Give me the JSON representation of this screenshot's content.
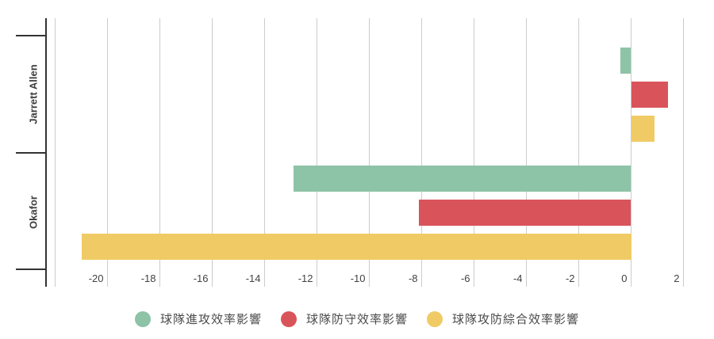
{
  "chart_data": {
    "type": "bar",
    "orientation": "horizontal",
    "title": "",
    "xlabel": "",
    "ylabel": "",
    "grid": true,
    "legend_position": "bottom",
    "categories": [
      "Jarrett Allen",
      "Okafor"
    ],
    "series": [
      {
        "name": "球隊進攻效率影響",
        "color": "#8DC3A7",
        "values": [
          -0.4,
          -12.9
        ]
      },
      {
        "name": "球隊防守效率影響",
        "color": "#D9545A",
        "values": [
          1.4,
          -8.1
        ]
      },
      {
        "name": "球隊攻防綜合效率影響",
        "color": "#F0CB65",
        "values": [
          0.9,
          -21
        ]
      }
    ],
    "x_axis": {
      "min": -22,
      "max": 2,
      "gridline_step": 2,
      "label_min": -20,
      "label_step": 2,
      "tick_labels": [
        "-20",
        "-18",
        "-16",
        "-14",
        "-12",
        "-10",
        "-8",
        "-6",
        "-4",
        "-2",
        "0",
        "2"
      ]
    }
  },
  "colors": {
    "axis_line": "#333333",
    "gridline": "#cccccc",
    "axis_text": "#424242",
    "legend_text": "#4a4a4a",
    "background": "#ffffff"
  }
}
